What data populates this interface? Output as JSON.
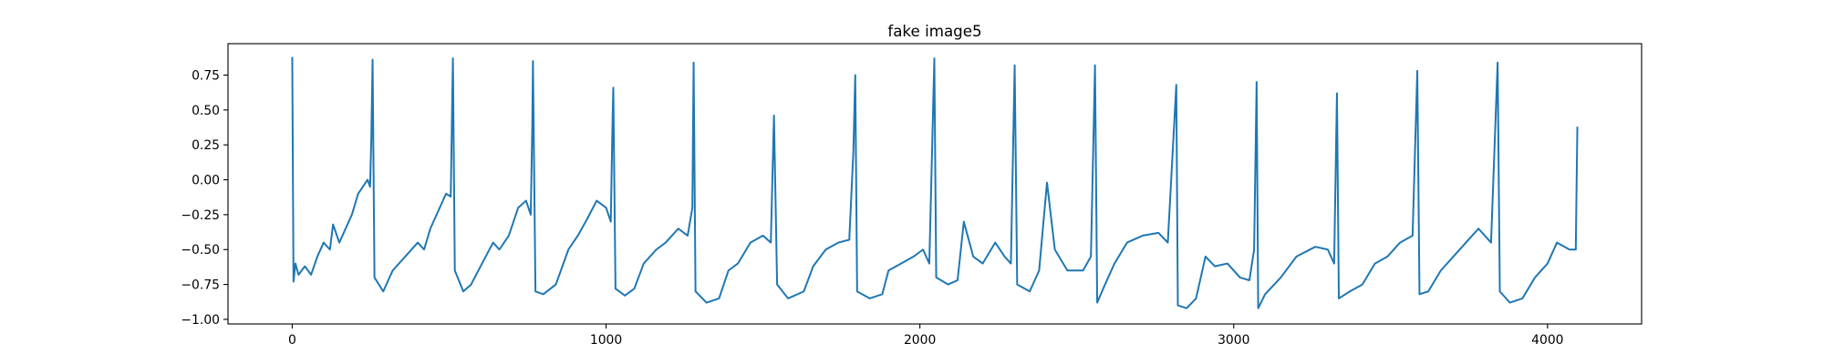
{
  "chart_data": {
    "type": "line",
    "title": "fake image5",
    "color": "#1f77b4",
    "x": [
      0,
      4,
      10,
      20,
      40,
      60,
      80,
      100,
      120,
      130,
      150,
      170,
      190,
      210,
      225,
      240,
      248,
      252,
      256,
      262,
      290,
      320,
      360,
      400,
      420,
      440,
      470,
      490,
      505,
      510,
      512,
      518,
      545,
      570,
      600,
      640,
      660,
      690,
      720,
      745,
      760,
      765,
      767,
      775,
      800,
      840,
      880,
      910,
      940,
      970,
      1000,
      1015,
      1020,
      1023,
      1030,
      1060,
      1090,
      1120,
      1160,
      1190,
      1230,
      1260,
      1275,
      1279,
      1285,
      1320,
      1360,
      1390,
      1420,
      1460,
      1500,
      1525,
      1535,
      1545,
      1580,
      1630,
      1660,
      1700,
      1740,
      1775,
      1788,
      1794,
      1800,
      1840,
      1880,
      1900,
      1940,
      1980,
      2010,
      2030,
      2046,
      2052,
      2090,
      2120,
      2140,
      2170,
      2200,
      2240,
      2270,
      2290,
      2302,
      2310,
      2350,
      2380,
      2405,
      2430,
      2470,
      2520,
      2545,
      2558,
      2565,
      2590,
      2620,
      2660,
      2710,
      2760,
      2790,
      2817,
      2822,
      2850,
      2880,
      2910,
      2940,
      2980,
      3020,
      3050,
      3065,
      3073,
      3078,
      3100,
      3150,
      3200,
      3260,
      3300,
      3320,
      3329,
      3335,
      3370,
      3410,
      3450,
      3490,
      3530,
      3570,
      3585,
      3592,
      3620,
      3660,
      3700,
      3740,
      3780,
      3820,
      3841,
      3848,
      3880,
      3920,
      3960,
      4000,
      4030,
      4070,
      4090,
      4095
    ],
    "values": [
      0.88,
      -0.73,
      -0.6,
      -0.68,
      -0.62,
      -0.68,
      -0.55,
      -0.45,
      -0.5,
      -0.32,
      -0.45,
      -0.35,
      -0.25,
      -0.1,
      -0.05,
      0,
      -0.05,
      0.3,
      0.86,
      -0.7,
      -0.8,
      -0.65,
      -0.55,
      -0.45,
      -0.5,
      -0.35,
      -0.2,
      -0.1,
      -0.12,
      0.6,
      0.87,
      -0.65,
      -0.8,
      -0.75,
      -0.62,
      -0.45,
      -0.5,
      -0.4,
      -0.2,
      -0.15,
      -0.25,
      0.4,
      0.85,
      -0.8,
      -0.82,
      -0.75,
      -0.5,
      -0.4,
      -0.28,
      -0.15,
      -0.2,
      -0.3,
      0.35,
      0.66,
      -0.78,
      -0.83,
      -0.78,
      -0.6,
      -0.5,
      -0.45,
      -0.35,
      -0.4,
      -0.2,
      0.84,
      -0.8,
      -0.88,
      -0.85,
      -0.65,
      -0.6,
      -0.45,
      -0.4,
      -0.45,
      0.46,
      -0.75,
      -0.85,
      -0.8,
      -0.62,
      -0.5,
      -0.45,
      -0.43,
      0.2,
      0.75,
      -0.8,
      -0.85,
      -0.82,
      -0.65,
      -0.6,
      -0.55,
      -0.5,
      -0.6,
      0.87,
      -0.7,
      -0.75,
      -0.72,
      -0.3,
      -0.55,
      -0.6,
      -0.45,
      -0.55,
      -0.6,
      0.82,
      -0.75,
      -0.8,
      -0.65,
      -0.02,
      -0.5,
      -0.65,
      -0.65,
      -0.55,
      0.82,
      -0.88,
      -0.75,
      -0.6,
      -0.45,
      -0.4,
      -0.38,
      -0.45,
      0.68,
      -0.9,
      -0.92,
      -0.85,
      -0.55,
      -0.62,
      -0.6,
      -0.7,
      -0.72,
      -0.5,
      0.7,
      -0.92,
      -0.82,
      -0.7,
      -0.55,
      -0.48,
      -0.5,
      -0.6,
      0.62,
      -0.85,
      -0.8,
      -0.75,
      -0.6,
      -0.55,
      -0.45,
      -0.4,
      0.78,
      -0.82,
      -0.8,
      -0.65,
      -0.55,
      -0.45,
      -0.35,
      -0.45,
      0.84,
      -0.8,
      -0.88,
      -0.85,
      -0.7,
      -0.6,
      -0.45,
      -0.5,
      -0.5,
      0.38
    ],
    "xlim": [
      -204.75,
      4299.75
    ],
    "xticks": [
      0,
      1000,
      2000,
      3000,
      4000
    ],
    "ylim": [
      -1.033,
      0.975
    ],
    "yticks": [
      {
        "value": -1,
        "label": "−1.00"
      },
      {
        "value": -0.75,
        "label": "−0.75"
      },
      {
        "value": -0.5,
        "label": "−0.50"
      },
      {
        "value": -0.25,
        "label": "−0.25"
      },
      {
        "value": 0,
        "label": "0.00"
      },
      {
        "value": 0.25,
        "label": "0.25"
      },
      {
        "value": 0.5,
        "label": "0.50"
      },
      {
        "value": 0.75,
        "label": "0.75"
      }
    ],
    "grid": false
  }
}
